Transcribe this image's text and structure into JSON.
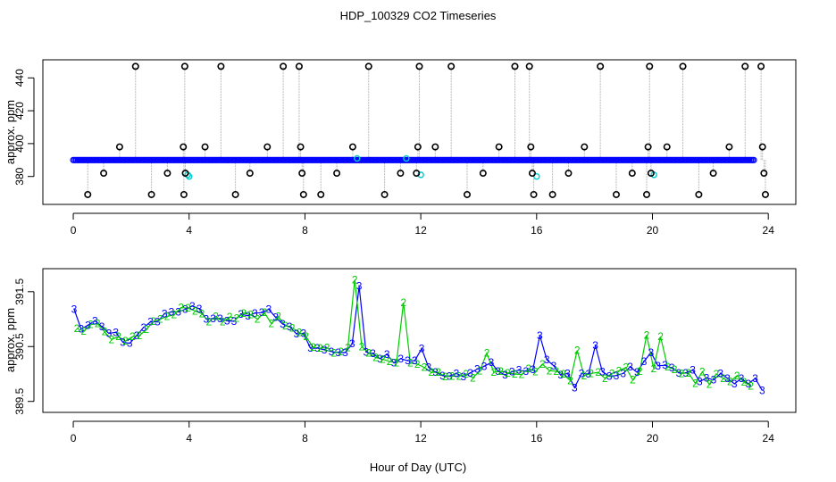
{
  "title": "HDP_100329  CO2 Timeseries",
  "xlabel": "Hour of Day (UTC)",
  "chart_data": [
    {
      "type": "scatter",
      "ylabel": "approx. ppm",
      "xlim": [
        -1.05,
        24.95
      ],
      "ylim": [
        363,
        451
      ],
      "xticks": [
        0,
        4,
        8,
        12,
        16,
        20,
        24
      ],
      "xtick_labels": [
        "0",
        "4",
        "8",
        "12",
        "16",
        "20",
        "24"
      ],
      "yticks": [
        380,
        400,
        420,
        440
      ],
      "ytick_labels": [
        "380",
        "400",
        "420",
        "440"
      ],
      "colors": {
        "main": "#0000ff",
        "outlier": "#000000",
        "alt": "#00cccc",
        "trace": "#bbbbbb"
      },
      "main_start": 0.0,
      "main_step": 0.05,
      "main_values": [
        390,
        390,
        390,
        390,
        390,
        390,
        390,
        390,
        390,
        390,
        390,
        390,
        390,
        390,
        390,
        390,
        390,
        390,
        390,
        390,
        390,
        390,
        390,
        390,
        390,
        390,
        390,
        390,
        390,
        390,
        390,
        390,
        390,
        390,
        390,
        390,
        390,
        390,
        390,
        390,
        390,
        390,
        390,
        390,
        390,
        390,
        390,
        390,
        390,
        390,
        390,
        390,
        390,
        390,
        390,
        390,
        390,
        390,
        390,
        390,
        390,
        390,
        390,
        390,
        390,
        390,
        390,
        390,
        390,
        390,
        390,
        390,
        390,
        390,
        390,
        390,
        390,
        390,
        390,
        390,
        390,
        390,
        390,
        390,
        390,
        390,
        390,
        390,
        390,
        390,
        390,
        390,
        390,
        390,
        390,
        390,
        390,
        390,
        390,
        390,
        390,
        390,
        390,
        390,
        390,
        390,
        390,
        390,
        390,
        390,
        390,
        390,
        390,
        390,
        390,
        390,
        390,
        390,
        390,
        390,
        390,
        390,
        390,
        390,
        390,
        390,
        390,
        390,
        390,
        390,
        390,
        390,
        390,
        390,
        390,
        390,
        390,
        390,
        390,
        390,
        390,
        390,
        390,
        390,
        390,
        390,
        390,
        390,
        390,
        390,
        390,
        390,
        390,
        390,
        390,
        390,
        390,
        390,
        390,
        390,
        390,
        390,
        390,
        390,
        390,
        390,
        390,
        390,
        390,
        390,
        390,
        390,
        390,
        390,
        390,
        390,
        390,
        390,
        390,
        390,
        390,
        390,
        390,
        390,
        390,
        390,
        390,
        390,
        390,
        390,
        390,
        390,
        390,
        390,
        390,
        390,
        390,
        390,
        390,
        390,
        390,
        390,
        390,
        390,
        390,
        390,
        390,
        390,
        390,
        390,
        390,
        390,
        390,
        390,
        390,
        390,
        390,
        390,
        390,
        390,
        390,
        390,
        390,
        390,
        390,
        390,
        390,
        390,
        390,
        390,
        390,
        390,
        390,
        390,
        390,
        390,
        390,
        390,
        390,
        390,
        390,
        390,
        390,
        390,
        390,
        390,
        390,
        390,
        390,
        390,
        390,
        390,
        390,
        390,
        390,
        390,
        390,
        390,
        390,
        390,
        390,
        390,
        390,
        390,
        390,
        390,
        390,
        390,
        390,
        390,
        390,
        390,
        390,
        390,
        390,
        390,
        390,
        390,
        390,
        390,
        390,
        390,
        390,
        390,
        390,
        390,
        390,
        390,
        390,
        390,
        390,
        390,
        390,
        390,
        390,
        390,
        390,
        390,
        390,
        390,
        390,
        390,
        390,
        390,
        390,
        390,
        390,
        390,
        390,
        390,
        390,
        390,
        390,
        390,
        390,
        390,
        390,
        390,
        390,
        390,
        390,
        390,
        390,
        390,
        390,
        390,
        390,
        390,
        390,
        390,
        390,
        390,
        390,
        390,
        390,
        390,
        390,
        390,
        390,
        390,
        390,
        390,
        390,
        390,
        390,
        390,
        390,
        390,
        390,
        390,
        390,
        390,
        390,
        390,
        390,
        390,
        390,
        390,
        390,
        390,
        390,
        390,
        390,
        390,
        390,
        390,
        390,
        390,
        390,
        390,
        390,
        390,
        390,
        390,
        390,
        390,
        390,
        390,
        390,
        390,
        390,
        390,
        390,
        390,
        390,
        390,
        390,
        390,
        390,
        390,
        390,
        390,
        390,
        390,
        390,
        390,
        390,
        390,
        390,
        390,
        390,
        390,
        390,
        390,
        390,
        390,
        390,
        390,
        390,
        390,
        390,
        390,
        390,
        390,
        390,
        390,
        390,
        390,
        390,
        390,
        390,
        390,
        390,
        390,
        390,
        390,
        390,
        390,
        390,
        390,
        390,
        390,
        390,
        390,
        390,
        390,
        390,
        390,
        390,
        390,
        390,
        390,
        390,
        390,
        390,
        390,
        390,
        390,
        390,
        390,
        390,
        390,
        390,
        390,
        390,
        390,
        390,
        390,
        390,
        390,
        390,
        390,
        390,
        390,
        390,
        390,
        390,
        390,
        390,
        390,
        390
      ],
      "outliers": [
        {
          "x": 0.5,
          "y": 369
        },
        {
          "x": 1.05,
          "y": 382
        },
        {
          "x": 1.6,
          "y": 398
        },
        {
          "x": 2.15,
          "y": 447
        },
        {
          "x": 2.7,
          "y": 369
        },
        {
          "x": 3.25,
          "y": 382
        },
        {
          "x": 3.8,
          "y": 398
        },
        {
          "x": 3.82,
          "y": 369
        },
        {
          "x": 3.85,
          "y": 447
        },
        {
          "x": 3.87,
          "y": 382
        },
        {
          "x": 4.55,
          "y": 398
        },
        {
          "x": 5.1,
          "y": 447
        },
        {
          "x": 5.6,
          "y": 369
        },
        {
          "x": 6.1,
          "y": 382
        },
        {
          "x": 6.7,
          "y": 398
        },
        {
          "x": 7.25,
          "y": 447
        },
        {
          "x": 7.8,
          "y": 447
        },
        {
          "x": 7.85,
          "y": 398
        },
        {
          "x": 7.9,
          "y": 382
        },
        {
          "x": 7.95,
          "y": 369
        },
        {
          "x": 8.55,
          "y": 369
        },
        {
          "x": 9.1,
          "y": 382
        },
        {
          "x": 9.65,
          "y": 398
        },
        {
          "x": 10.2,
          "y": 447
        },
        {
          "x": 10.75,
          "y": 369
        },
        {
          "x": 11.3,
          "y": 382
        },
        {
          "x": 11.85,
          "y": 382
        },
        {
          "x": 11.9,
          "y": 398
        },
        {
          "x": 11.95,
          "y": 447
        },
        {
          "x": 12.5,
          "y": 398
        },
        {
          "x": 13.05,
          "y": 447
        },
        {
          "x": 13.6,
          "y": 369
        },
        {
          "x": 14.15,
          "y": 382
        },
        {
          "x": 14.7,
          "y": 398
        },
        {
          "x": 15.25,
          "y": 447
        },
        {
          "x": 15.75,
          "y": 447
        },
        {
          "x": 15.8,
          "y": 398
        },
        {
          "x": 15.85,
          "y": 382
        },
        {
          "x": 15.9,
          "y": 369
        },
        {
          "x": 16.55,
          "y": 369
        },
        {
          "x": 17.1,
          "y": 382
        },
        {
          "x": 17.65,
          "y": 398
        },
        {
          "x": 18.2,
          "y": 447
        },
        {
          "x": 18.75,
          "y": 369
        },
        {
          "x": 19.3,
          "y": 382
        },
        {
          "x": 19.8,
          "y": 369
        },
        {
          "x": 19.85,
          "y": 398
        },
        {
          "x": 19.9,
          "y": 447
        },
        {
          "x": 19.95,
          "y": 382
        },
        {
          "x": 20.5,
          "y": 398
        },
        {
          "x": 21.05,
          "y": 447
        },
        {
          "x": 21.6,
          "y": 369
        },
        {
          "x": 22.1,
          "y": 382
        },
        {
          "x": 22.65,
          "y": 398
        },
        {
          "x": 23.2,
          "y": 447
        },
        {
          "x": 23.75,
          "y": 447
        },
        {
          "x": 23.8,
          "y": 398
        },
        {
          "x": 23.85,
          "y": 382
        },
        {
          "x": 23.9,
          "y": 369
        }
      ],
      "alt_points": [
        {
          "x": 3.95,
          "y": 381
        },
        {
          "x": 4.0,
          "y": 380
        },
        {
          "x": 9.8,
          "y": 391
        },
        {
          "x": 11.5,
          "y": 391
        },
        {
          "x": 12.0,
          "y": 381
        },
        {
          "x": 16.0,
          "y": 380
        },
        {
          "x": 20.05,
          "y": 381
        }
      ]
    },
    {
      "type": "line",
      "ylabel": "approx. ppm",
      "xlim": [
        -1.05,
        24.95
      ],
      "ylim": [
        389.3,
        391.92
      ],
      "xticks": [
        0,
        4,
        8,
        12,
        16,
        20,
        24
      ],
      "xtick_labels": [
        "0",
        "4",
        "8",
        "12",
        "16",
        "20",
        "24"
      ],
      "yticks": [
        389.5,
        390.5,
        391.5
      ],
      "ytick_labels": [
        "389.5",
        "390.5",
        "391.5"
      ],
      "series": [
        {
          "marker": "3",
          "color": "#0000ff",
          "x": [
            0.03,
            0.27,
            0.51,
            0.75,
            0.99,
            1.23,
            1.47,
            1.71,
            1.95,
            2.19,
            2.43,
            2.67,
            2.91,
            3.15,
            3.39,
            3.63,
            3.87,
            4.11,
            4.35,
            4.59,
            4.83,
            5.07,
            5.31,
            5.55,
            5.79,
            6.03,
            6.27,
            6.51,
            6.75,
            6.99,
            7.23,
            7.47,
            7.71,
            7.95,
            8.19,
            8.43,
            8.67,
            8.91,
            9.15,
            9.39,
            9.63,
            9.87,
            10.11,
            10.35,
            10.59,
            10.83,
            11.07,
            11.31,
            11.55,
            11.79,
            12.03,
            12.27,
            12.51,
            12.75,
            12.99,
            13.23,
            13.47,
            13.71,
            13.95,
            14.19,
            14.43,
            14.67,
            14.91,
            15.15,
            15.39,
            15.63,
            15.87,
            16.11,
            16.35,
            16.59,
            16.83,
            17.07,
            17.31,
            17.55,
            17.79,
            18.03,
            18.27,
            18.51,
            18.75,
            18.99,
            19.23,
            19.47,
            19.71,
            19.95,
            20.19,
            20.43,
            20.67,
            20.91,
            21.15,
            21.39,
            21.63,
            21.87,
            22.11,
            22.35,
            22.59,
            22.83,
            23.07,
            23.31,
            23.55,
            23.79
          ],
          "y": [
            391.18,
            390.82,
            390.89,
            390.97,
            390.86,
            390.74,
            390.76,
            390.58,
            390.56,
            390.7,
            390.85,
            390.95,
            390.95,
            391.1,
            391.13,
            391.13,
            391.18,
            391.24,
            391.19,
            391.0,
            391.01,
            391.01,
            390.97,
            390.96,
            391.09,
            391.06,
            391.11,
            391.12,
            391.18,
            391.03,
            390.91,
            390.86,
            390.73,
            390.74,
            390.47,
            390.47,
            390.44,
            390.41,
            390.39,
            390.39,
            390.55,
            391.6,
            390.4,
            390.37,
            390.28,
            390.36,
            390.2,
            390.28,
            390.24,
            390.24,
            390.46,
            390.12,
            390.03,
            389.97,
            389.96,
            390.01,
            389.95,
            390.02,
            390.09,
            390.14,
            390.21,
            390.05,
            389.98,
            390.04,
            390.07,
            390.05,
            390.08,
            390.7,
            390.26,
            390.15,
            389.98,
            390.01,
            389.75,
            390.01,
            390.0,
            390.52,
            390.04,
            389.96,
            389.97,
            390.01,
            390.13,
            390.03,
            390.23,
            390.39,
            390.15,
            390.16,
            390.11,
            390.02,
            390.02,
            390.07,
            389.86,
            389.93,
            389.89,
            390.01,
            389.92,
            389.82,
            389.92,
            389.82,
            389.92,
            389.7
          ]
        },
        {
          "marker": "2",
          "color": "#00cc00",
          "x": [
            0.12,
            0.36,
            0.6,
            0.84,
            1.08,
            1.32,
            1.56,
            1.8,
            2.04,
            2.28,
            2.52,
            2.76,
            3.0,
            3.24,
            3.48,
            3.72,
            3.96,
            4.2,
            4.44,
            4.68,
            4.92,
            5.16,
            5.4,
            5.64,
            5.88,
            6.12,
            6.36,
            6.6,
            6.84,
            7.08,
            7.32,
            7.56,
            7.8,
            8.04,
            8.28,
            8.52,
            8.76,
            9.0,
            9.24,
            9.48,
            9.72,
            9.96,
            10.2,
            10.44,
            10.68,
            10.92,
            11.16,
            11.4,
            11.64,
            11.88,
            12.12,
            12.36,
            12.6,
            12.84,
            13.08,
            13.32,
            13.56,
            13.8,
            14.04,
            14.28,
            14.52,
            14.76,
            15.0,
            15.24,
            15.48,
            15.72,
            15.96,
            16.2,
            16.44,
            16.68,
            16.92,
            17.16,
            17.4,
            17.64,
            17.88,
            18.12,
            18.36,
            18.6,
            18.84,
            19.08,
            19.32,
            19.56,
            19.8,
            20.04,
            20.28,
            20.52,
            20.76,
            21.0,
            21.24,
            21.48,
            21.72,
            21.96,
            22.2,
            22.44,
            22.68,
            22.92,
            23.16,
            23.4
          ],
          "y": [
            390.83,
            390.78,
            390.9,
            390.92,
            390.77,
            390.63,
            390.68,
            390.6,
            390.68,
            390.7,
            390.81,
            390.96,
            391.0,
            391.05,
            391.08,
            391.21,
            391.2,
            391.15,
            391.1,
            390.95,
            391.05,
            390.95,
            391.04,
            391.02,
            391.11,
            391.08,
            391.0,
            391.12,
            390.92,
            391.05,
            390.88,
            390.84,
            390.76,
            390.68,
            390.49,
            390.47,
            390.48,
            390.38,
            390.41,
            390.48,
            391.72,
            390.5,
            390.38,
            390.3,
            390.27,
            390.23,
            390.2,
            391.3,
            390.2,
            390.18,
            390.12,
            390.03,
            390.03,
            389.95,
            389.96,
            389.96,
            390.0,
            389.93,
            390.06,
            390.38,
            390.03,
            390.05,
            390.02,
            390.0,
            389.99,
            390.1,
            390.04,
            390.18,
            390.06,
            390.05,
            390.0,
            389.88,
            390.43,
            389.97,
            390.01,
            390.03,
            389.92,
            390.01,
            390.06,
            390.12,
            389.89,
            390.05,
            390.71,
            390.1,
            390.68,
            390.13,
            390.08,
            390.01,
            390.02,
            389.83,
            390.04,
            389.81,
            390.0,
            389.92,
            389.86,
            389.97,
            389.85,
            389.78
          ]
        }
      ]
    }
  ]
}
